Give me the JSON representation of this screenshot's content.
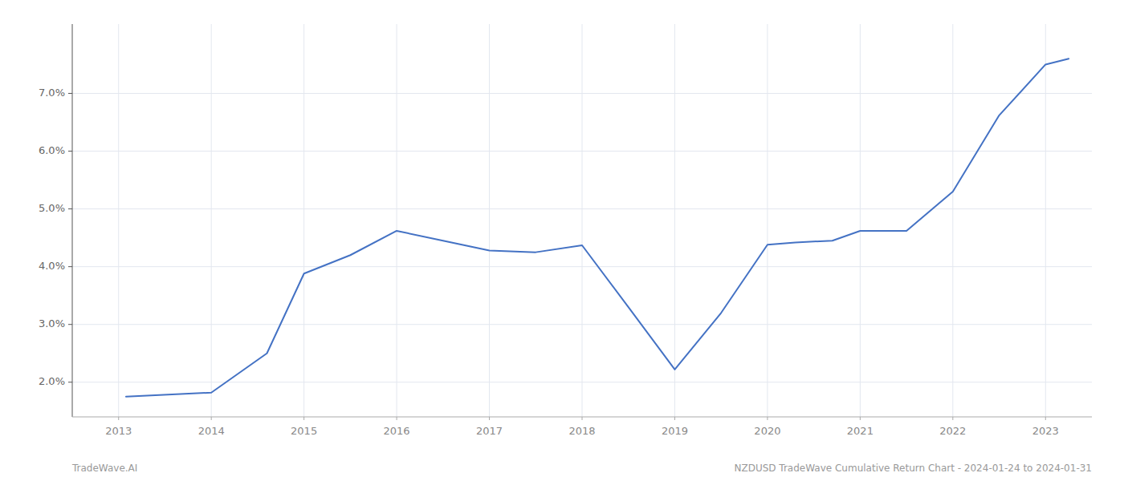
{
  "chart_data": {
    "type": "line",
    "x": [
      2013.08,
      2014.0,
      2014.6,
      2015.0,
      2015.5,
      2016.0,
      2016.5,
      2017.0,
      2017.5,
      2018.0,
      2018.5,
      2019.0,
      2019.5,
      2020.0,
      2020.3,
      2020.7,
      2021.0,
      2021.5,
      2022.0,
      2022.5,
      2023.0,
      2023.25
    ],
    "values": [
      1.75,
      1.82,
      2.5,
      3.88,
      4.2,
      4.62,
      4.45,
      4.28,
      4.25,
      4.37,
      3.3,
      2.22,
      3.2,
      4.38,
      4.42,
      4.45,
      4.62,
      4.62,
      5.3,
      6.62,
      7.5,
      7.6
    ],
    "color": "#4472c4",
    "xlim": [
      2012.5,
      2023.5
    ],
    "xticks": [
      2013,
      2014,
      2015,
      2016,
      2017,
      2018,
      2019,
      2020,
      2021,
      2022,
      2023
    ],
    "ylim": [
      1.4,
      8.2
    ],
    "yticks": [
      {
        "value": 2.0,
        "label": "2.0%"
      },
      {
        "value": 3.0,
        "label": "3.0%"
      },
      {
        "value": 4.0,
        "label": "4.0%"
      },
      {
        "value": 5.0,
        "label": "5.0%"
      },
      {
        "value": 6.0,
        "label": "6.0%"
      },
      {
        "value": 7.0,
        "label": "7.0%"
      }
    ],
    "grid": true,
    "annotations": [
      "TradeWave.AI",
      "NZDUSD TradeWave Cumulative Return Chart - 2024-01-24 to 2024-01-31"
    ]
  }
}
